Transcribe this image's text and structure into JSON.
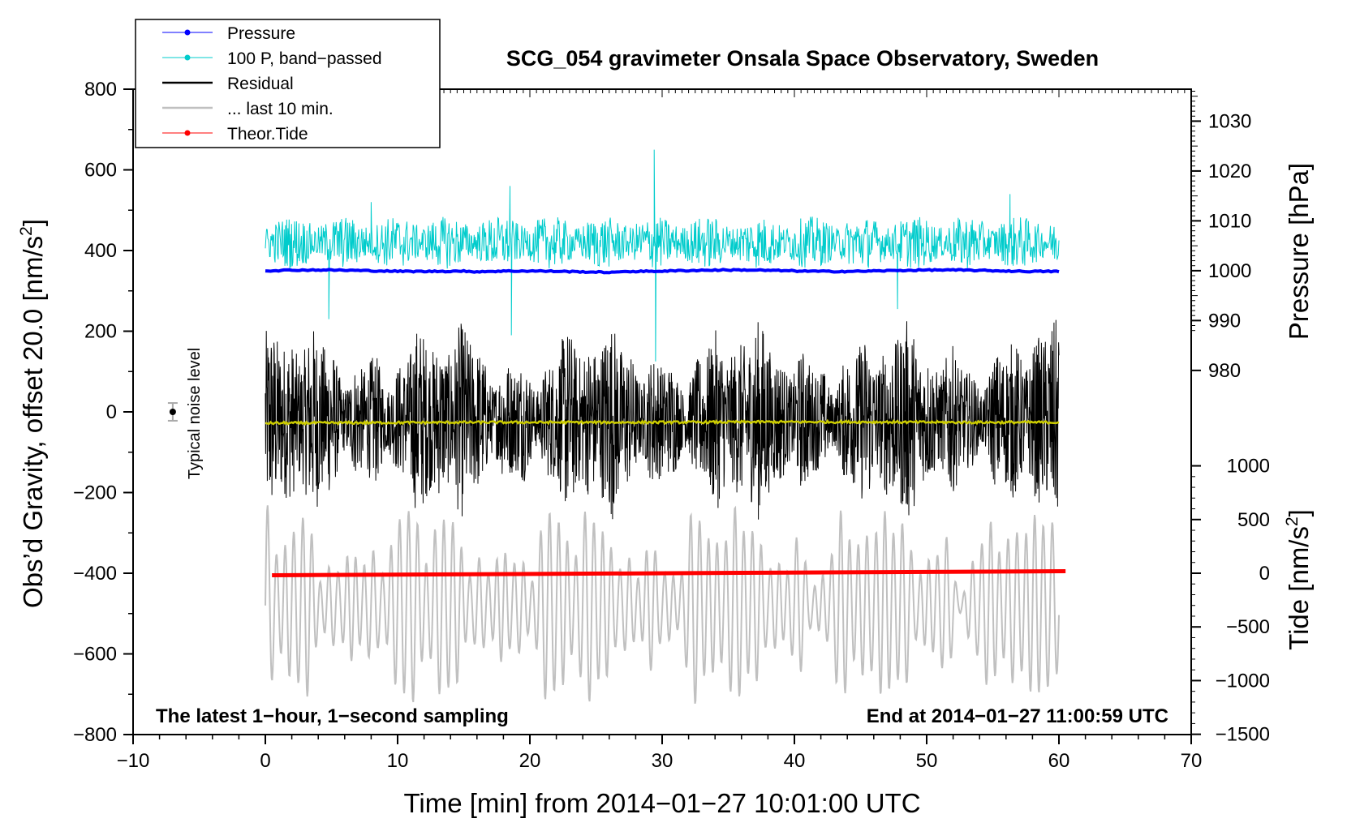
{
  "chart_data": {
    "type": "line",
    "title": "SCG_054 gravimeter Onsala Space Observatory, Sweden",
    "xlabel": "Time [min] from 2014−01−27 10:01:00 UTC",
    "ylabel_left": "Obs’d Gravity, offset 20.0 [nm/s",
    "ylabel_left_sup": "2",
    "ylabel_left_end": "]",
    "ylabel_right_pressure": "Pressure [hPa]",
    "ylabel_right_tide": "Tide [nm/s",
    "ylabel_right_tide_sup": "2",
    "ylabel_right_tide_end": "]",
    "xlim": [
      -10,
      70
    ],
    "ylim": [
      -800,
      800
    ],
    "xticks": [
      -10,
      0,
      10,
      20,
      30,
      40,
      50,
      60,
      70
    ],
    "xtick_labels": [
      "−10",
      "0",
      "10",
      "20",
      "30",
      "40",
      "50",
      "60",
      "70"
    ],
    "yticks": [
      -800,
      -600,
      -400,
      -200,
      0,
      200,
      400,
      600,
      800
    ],
    "ytick_labels": [
      "−800",
      "−600",
      "−400",
      "−200",
      "0",
      "200",
      "400",
      "600",
      "800"
    ],
    "pressure_axis": {
      "ticks": [
        980,
        990,
        1000,
        1010,
        1020,
        1030
      ],
      "tick_labels": [
        "980",
        "990",
        "1000",
        "1010",
        "1020",
        "1030"
      ],
      "ref_hpa": 1000,
      "ref_left_value": 350,
      "left_units_per_hpa": 12.36
    },
    "tide_axis": {
      "ticks": [
        -1500,
        -1000,
        -500,
        0,
        500,
        1000
      ],
      "tick_labels": [
        "−1500",
        "−1000",
        "−500",
        "0",
        "500",
        "1000"
      ],
      "left_units_per_nms2": 0.2662,
      "zero_left_value": -400
    },
    "legend": {
      "position": "top-left",
      "entries": [
        {
          "label": "Pressure",
          "color": "#0000ff",
          "marker": true
        },
        {
          "label": "100 P, band−passed",
          "color": "#00cccc",
          "marker": true
        },
        {
          "label": "Residual",
          "color": "#000000",
          "marker": false
        },
        {
          "label": "... last 10 min.",
          "color": "#c0c0c0",
          "marker": false
        },
        {
          "label": "Theor.Tide",
          "color": "#ff0000",
          "marker": true
        }
      ]
    },
    "annotations": {
      "left_bottom": "The latest 1−hour, 1−second sampling",
      "right_bottom": "End at 2014−01−27 11:00:59 UTC",
      "noise_label": "Typical noise level"
    },
    "noise_level": {
      "x": -7,
      "y": 0,
      "err": 22
    },
    "series": [
      {
        "name": "Pressure",
        "color": "#0000ff",
        "x_start": 0,
        "x_end": 60,
        "baseline": 350,
        "amplitude": 3
      },
      {
        "name": "100 P, band−passed",
        "color": "#00cccc",
        "x_start": 0,
        "x_end": 60,
        "baseline": 420,
        "amplitude": 65,
        "spikes": [
          {
            "x": 29.4,
            "y": 650
          },
          {
            "x": 29.5,
            "y": 125
          },
          {
            "x": 18.5,
            "y": 560
          },
          {
            "x": 18.6,
            "y": 190
          },
          {
            "x": 56.3,
            "y": 540
          },
          {
            "x": 52.2,
            "y": 440
          },
          {
            "x": 4.8,
            "y": 230
          },
          {
            "x": 8.0,
            "y": 520
          },
          {
            "x": 47.8,
            "y": 255
          }
        ]
      },
      {
        "name": "Residual",
        "color": "#000000",
        "x_start": 0,
        "x_end": 60,
        "baseline": -20,
        "amplitude_range": [
          70,
          250
        ]
      },
      {
        "name": "Residual mean",
        "color": "#cccc00",
        "x_start": 0,
        "x_end": 60,
        "values": [
          -28,
          -27,
          -26,
          -26,
          -26,
          -25,
          -25,
          -26,
          -26
        ]
      },
      {
        "name": "... last 10 min.",
        "color": "#c0c0c0",
        "x_start": 0,
        "x_end": 60,
        "baseline": -500,
        "amplitude_range": [
          40,
          250
        ]
      },
      {
        "name": "Theor.Tide",
        "color": "#ff0000",
        "x": [
          0.5,
          60.5
        ],
        "values_left_units": [
          -405,
          -395
        ]
      }
    ]
  }
}
